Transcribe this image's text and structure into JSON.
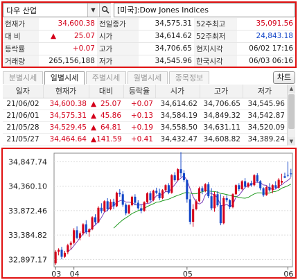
{
  "search": {
    "value": "다우 산업",
    "button_icon": "search-icon"
  },
  "index_name": "[미국]:Dow Jones Indices",
  "quote": {
    "rows": [
      {
        "c1": "현재가",
        "c2": "34,600.38",
        "c3": "전일종가",
        "c4": "34,575.31",
        "c5": "52주최고",
        "c6": "35,091.56"
      },
      {
        "c1": "대 비",
        "c2": "25.07",
        "c3": "시가",
        "c4": "34,614.62",
        "c5": "52주최저",
        "c6": "24,843.18"
      },
      {
        "c1": "등락률",
        "c2": "+0.07",
        "c3": "고가",
        "c4": "34,706.65",
        "c5": "현지시각",
        "c6": "06/02 17:16"
      },
      {
        "c1": "거래량",
        "c2": "265,156,188",
        "c3": "저가",
        "c4": "34,545.96",
        "c5": "한국시각",
        "c6": "06/03 06:16"
      }
    ],
    "up_arrow": "▲",
    "colors": {
      "up": "#d4001a",
      "down": "#1447c8"
    }
  },
  "tabs": [
    "분별시세",
    "일별시세",
    "주별시세",
    "월별시세",
    "종목정보"
  ],
  "active_tab": "일별시세",
  "chart_button": "차트",
  "daily": {
    "headers": [
      "일자",
      "현재가",
      "대비",
      "등락율",
      "시가",
      "고가",
      "저가"
    ],
    "rows": [
      {
        "date": "21/06/02",
        "close": "34,600.38",
        "change": "25.07",
        "rate": "+0.07",
        "open": "34,614.62",
        "high": "34,706.65",
        "low": "34,545.96"
      },
      {
        "date": "21/06/01",
        "close": "34,575.31",
        "change": "45.86",
        "rate": "+0.13",
        "open": "34,584.19",
        "high": "34,849.32",
        "low": "34,542.87"
      },
      {
        "date": "21/05/28",
        "close": "34,529.45",
        "change": "64.81",
        "rate": "+0.19",
        "open": "34,558.50",
        "high": "34,631.11",
        "low": "34,520.09"
      },
      {
        "date": "21/05/27",
        "close": "34,464.64",
        "change": "141.59",
        "rate": "+0.41",
        "open": "34,432.47",
        "high": "34,608.82",
        "low": "34,389.24"
      }
    ],
    "arrow": "▲"
  },
  "chart_data": {
    "type": "candlestick",
    "y_ticks": [
      "34,847.74",
      "34,360.10",
      "33,872.46",
      "33,384.82",
      "32,897.17"
    ],
    "y_tick_values": [
      34847.74,
      34360.1,
      33872.46,
      33384.82,
      32897.17
    ],
    "x_ticks": [
      "03",
      "04",
      "05",
      "06"
    ],
    "x_tick_index": [
      0,
      6,
      43,
      76
    ],
    "ylim": [
      32750,
      35020
    ],
    "colors": {
      "up": "#d4001a",
      "down": "#1447c8",
      "ma_short": "#7a3fb8",
      "ma_long": "#1f9a1f"
    },
    "candles": [
      [
        32820,
        33080,
        32790,
        33050
      ],
      [
        33050,
        33120,
        32980,
        33090
      ],
      [
        33090,
        33150,
        32900,
        32950
      ],
      [
        32950,
        33070,
        32930,
        33030
      ],
      [
        33040,
        33210,
        33000,
        33180
      ],
      [
        33190,
        33260,
        33100,
        33230
      ],
      [
        33230,
        33520,
        33200,
        33480
      ],
      [
        33480,
        33560,
        33300,
        33330
      ],
      [
        33330,
        33460,
        33280,
        33420
      ],
      [
        33420,
        33620,
        33380,
        33600
      ],
      [
        33600,
        33680,
        33400,
        33440
      ],
      [
        33440,
        33520,
        33350,
        33500
      ],
      [
        33500,
        33760,
        33480,
        33740
      ],
      [
        33740,
        33800,
        33600,
        33640
      ],
      [
        33640,
        33960,
        33620,
        33930
      ],
      [
        33930,
        34020,
        33820,
        33860
      ],
      [
        33860,
        34080,
        33840,
        34060
      ],
      [
        34060,
        34120,
        33860,
        33900
      ],
      [
        33900,
        34100,
        33880,
        34050
      ],
      [
        34050,
        34110,
        33900,
        33960
      ],
      [
        33960,
        34250,
        33940,
        34230
      ],
      [
        34230,
        34300,
        34150,
        34200
      ],
      [
        34200,
        34260,
        33950,
        33990
      ],
      [
        33990,
        34020,
        33780,
        33820
      ],
      [
        33820,
        34000,
        33800,
        33980
      ],
      [
        33980,
        34170,
        33960,
        34150
      ],
      [
        34150,
        34200,
        33980,
        34030
      ],
      [
        34030,
        34080,
        33890,
        33920
      ],
      [
        33920,
        34000,
        33820,
        33870
      ],
      [
        33870,
        34060,
        33850,
        34040
      ],
      [
        34040,
        34240,
        34020,
        34220
      ],
      [
        34220,
        34260,
        34050,
        34080
      ],
      [
        34080,
        34290,
        34060,
        34270
      ],
      [
        34270,
        34330,
        34200,
        34230
      ],
      [
        34230,
        34310,
        34080,
        34120
      ],
      [
        34120,
        34300,
        34100,
        34280
      ],
      [
        34280,
        34400,
        34250,
        34380
      ],
      [
        34380,
        34420,
        34200,
        34230
      ],
      [
        34230,
        34600,
        34210,
        34580
      ],
      [
        34580,
        34640,
        34450,
        34480
      ],
      [
        34480,
        34720,
        34460,
        34700
      ],
      [
        34700,
        35040,
        34540,
        34620
      ],
      [
        34620,
        34680,
        34440,
        34480
      ],
      [
        34480,
        34500,
        34030,
        34100
      ],
      [
        34100,
        34200,
        33600,
        33650
      ],
      [
        33650,
        34000,
        33550,
        33900
      ],
      [
        33900,
        34100,
        33880,
        34060
      ],
      [
        34060,
        34350,
        34040,
        34320
      ],
      [
        34320,
        34360,
        34200,
        34260
      ],
      [
        34260,
        34420,
        34240,
        34400
      ],
      [
        34400,
        34440,
        34120,
        34160
      ],
      [
        34160,
        34320,
        33880,
        33920
      ],
      [
        33920,
        34250,
        33850,
        34200
      ],
      [
        34200,
        34260,
        33950,
        33980
      ],
      [
        33980,
        34200,
        33580,
        33620
      ],
      [
        33620,
        34160,
        33600,
        34120
      ],
      [
        34120,
        34180,
        34040,
        34080
      ],
      [
        34080,
        34100,
        33900,
        33940
      ],
      [
        33940,
        34220,
        33920,
        34200
      ],
      [
        34200,
        34400,
        34180,
        34380
      ],
      [
        34380,
        34420,
        34260,
        34300
      ],
      [
        34300,
        34480,
        34280,
        34460
      ],
      [
        34460,
        34520,
        34320,
        34350
      ],
      [
        34350,
        34440,
        34330,
        34420
      ],
      [
        34420,
        34470,
        34350,
        34380
      ],
      [
        34380,
        34600,
        34360,
        34580
      ],
      [
        34580,
        34620,
        34430,
        34460
      ],
      [
        34460,
        34480,
        34280,
        34320
      ],
      [
        34320,
        34340,
        34150,
        34180
      ],
      [
        34180,
        34360,
        34170,
        34340
      ],
      [
        34340,
        34420,
        34250,
        34280
      ],
      [
        34280,
        34400,
        34220,
        34380
      ],
      [
        34380,
        34460,
        34300,
        34330
      ],
      [
        34330,
        34520,
        34310,
        34490
      ],
      [
        34432,
        34609,
        34389,
        34465
      ],
      [
        34559,
        34631,
        34520,
        34529
      ],
      [
        34584,
        34849,
        34543,
        34575
      ],
      [
        34615,
        34707,
        34546,
        34600
      ]
    ]
  }
}
